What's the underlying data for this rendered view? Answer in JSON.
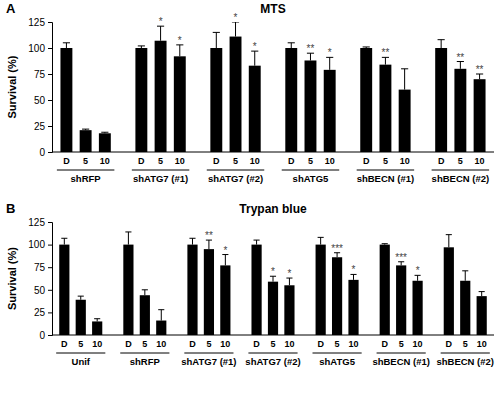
{
  "chart_data": [
    {
      "type": "bar",
      "panel_label": "A",
      "title": "MTS",
      "ylabel": "Survival (%)",
      "categories": [
        "D",
        "5",
        "10",
        "D",
        "5",
        "10",
        "D",
        "5",
        "10",
        "D",
        "5",
        "10",
        "D",
        "5",
        "10",
        "D",
        "5",
        "10"
      ],
      "groups": [
        "shRFP",
        "shATG7 (#1)",
        "shATG7 (#2)",
        "shATG5",
        "shBECN (#1)",
        "shBECN (#2)"
      ],
      "values": [
        100,
        21,
        18,
        100,
        107,
        92,
        100,
        111,
        83,
        100,
        88,
        79,
        100,
        84,
        60,
        100,
        80,
        70
      ],
      "errors": [
        5,
        1,
        1,
        2,
        14,
        11,
        15,
        14,
        14,
        5,
        7,
        12,
        1,
        7,
        20,
        8,
        7,
        5
      ],
      "significance": [
        null,
        null,
        null,
        null,
        "*",
        "*",
        null,
        "*",
        "*",
        null,
        "**",
        "*",
        null,
        "**",
        null,
        null,
        "**",
        "**"
      ],
      "color": "#000000",
      "ylim": [
        0,
        125
      ],
      "yticks": [
        0,
        25,
        50,
        75,
        100,
        125
      ]
    },
    {
      "type": "bar",
      "panel_label": "B",
      "title": "Trypan blue",
      "ylabel": "Survival (%)",
      "categories": [
        "D",
        "5",
        "10",
        "D",
        "5",
        "10",
        "D",
        "5",
        "10",
        "D",
        "5",
        "10",
        "D",
        "5",
        "10",
        "D",
        "5",
        "10",
        "D",
        "5",
        "10"
      ],
      "groups": [
        "Unif",
        "shRFP",
        "shATG7 (#1)",
        "shATG7 (#2)",
        "shATG5",
        "shBECN (#1)",
        "shBECN (#2)"
      ],
      "values": [
        100,
        39,
        15,
        100,
        44,
        16,
        100,
        95,
        77,
        100,
        59,
        55,
        100,
        86,
        61,
        100,
        77,
        60,
        97,
        60,
        43
      ],
      "errors": [
        7,
        4,
        3,
        14,
        6,
        12,
        7,
        10,
        12,
        5,
        6,
        8,
        8,
        5,
        6,
        1,
        4,
        6,
        14,
        11,
        5
      ],
      "significance": [
        null,
        null,
        null,
        null,
        null,
        null,
        null,
        "**",
        "*",
        null,
        "*",
        "*",
        null,
        "***",
        "*",
        null,
        "***",
        "*",
        null,
        null,
        null
      ],
      "color": "#000000",
      "ylim": [
        0,
        125
      ],
      "yticks": [
        0,
        25,
        50,
        75,
        100,
        125
      ]
    }
  ]
}
